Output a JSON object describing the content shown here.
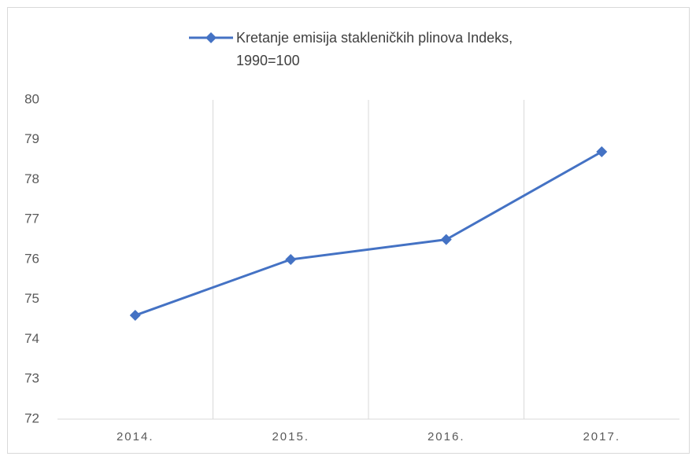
{
  "chart_data": {
    "type": "line",
    "categories": [
      "2014.",
      "2015.",
      "2016.",
      "2017."
    ],
    "series": [
      {
        "name": "Kretanje emisija stakleničkih plinova Indeks, 1990=100",
        "color": "#4472c4",
        "values": [
          74.6,
          76.0,
          76.5,
          78.7
        ]
      }
    ],
    "ylim": [
      72,
      80
    ],
    "yticks": [
      72,
      73,
      74,
      75,
      76,
      77,
      78,
      79,
      80
    ],
    "legend": "top"
  }
}
